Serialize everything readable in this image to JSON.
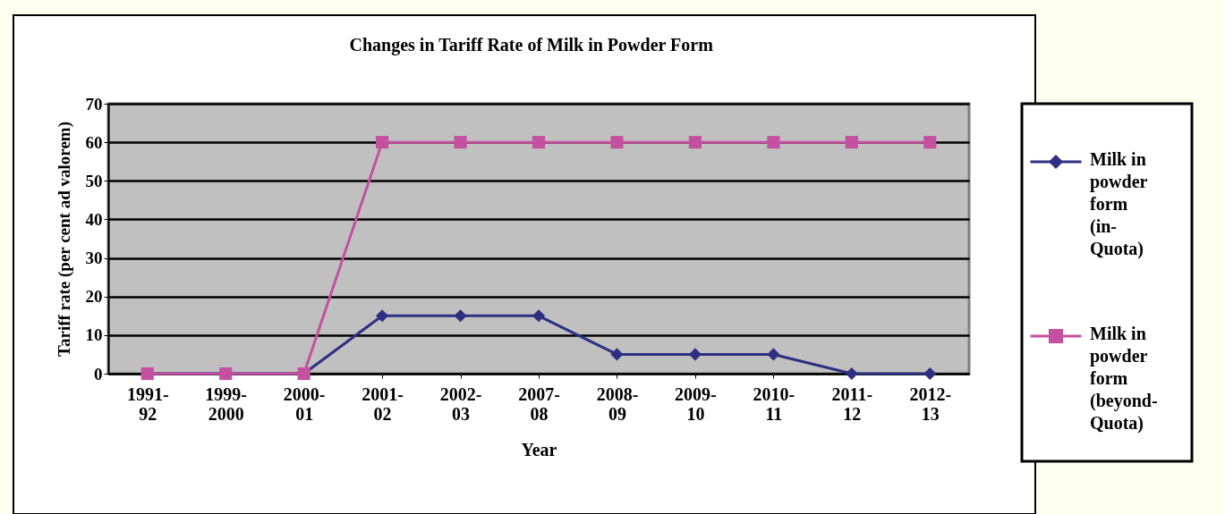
{
  "chart_data": {
    "type": "line",
    "title": "Changes in Tariff Rate of Milk in Powder Form",
    "xlabel": "Year",
    "ylabel": "Tariff rate (per cent ad valorem)",
    "categories": [
      "1991-92",
      "1999-2000",
      "2000-01",
      "2001-02",
      "2002-03",
      "2007-08",
      "2008-09",
      "2009-10",
      "2010-11",
      "2011-12",
      "2012-13"
    ],
    "series": [
      {
        "name": "Milk in powder form (in-Quota)",
        "color": "#2e2f80",
        "marker": "diamond",
        "values": [
          0,
          0,
          0,
          15,
          15,
          15,
          5,
          5,
          5,
          0,
          0
        ]
      },
      {
        "name": "Milk in powder form (beyond-Quota)",
        "color": "#c4519f",
        "marker": "square",
        "values": [
          0,
          0,
          0,
          60,
          60,
          60,
          60,
          60,
          60,
          60,
          60
        ]
      }
    ],
    "ylim": [
      0,
      70
    ],
    "yticks": [
      0,
      10,
      20,
      30,
      40,
      50,
      60,
      70
    ],
    "grid": "y",
    "legend": "right",
    "line_style": "solid"
  }
}
